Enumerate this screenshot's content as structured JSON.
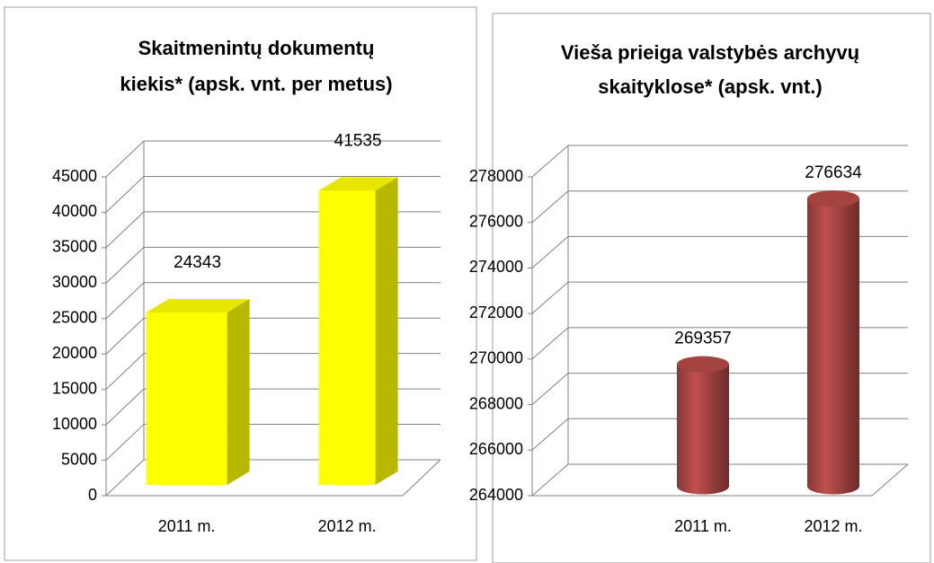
{
  "chart_data": [
    {
      "type": "bar3d",
      "title": [
        "Skaitmenintų dokumentų",
        "kiekis* (apsk. vnt. per metus)"
      ],
      "categories": [
        "2011 m.",
        "2012 m."
      ],
      "values": [
        24343,
        41535
      ],
      "color": "#ffff00",
      "ylim": [
        0,
        45000
      ],
      "yticks": [
        0,
        5000,
        10000,
        15000,
        20000,
        25000,
        30000,
        35000,
        40000,
        45000
      ],
      "grid": true
    },
    {
      "type": "cylinder",
      "title": [
        "Vieša prieiga valstybės archyvų",
        "skaityklose* (apsk. vnt.)"
      ],
      "categories": [
        "2011 m.",
        "2012 m."
      ],
      "values": [
        269357,
        276634
      ],
      "color": "#c0504d",
      "ylim": [
        264000,
        278000
      ],
      "yticks": [
        264000,
        266000,
        268000,
        270000,
        272000,
        274000,
        276000,
        278000
      ],
      "grid": true
    }
  ]
}
